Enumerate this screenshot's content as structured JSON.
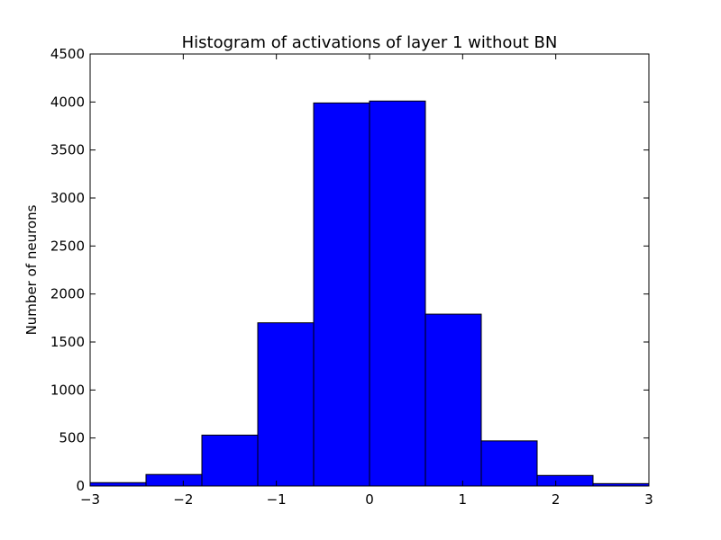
{
  "chart_data": {
    "type": "bar",
    "title": "Histogram of activations of layer 1  without BN",
    "xlabel": "",
    "ylabel": "Number of neurons",
    "xlim": [
      -3,
      3
    ],
    "ylim": [
      0,
      4500
    ],
    "bar_color": "#0000ff",
    "grid": false,
    "bin_edges": [
      -3.0,
      -2.4,
      -1.8,
      -1.2,
      -0.6,
      0.0,
      0.6,
      1.2,
      1.8,
      2.4,
      3.0
    ],
    "values": [
      35,
      120,
      530,
      1700,
      3990,
      4010,
      1790,
      470,
      110,
      25
    ],
    "x_ticks": [
      -3,
      -2,
      -1,
      0,
      1,
      2,
      3
    ],
    "x_tick_labels": [
      "−3",
      "−2",
      "−1",
      "0",
      "1",
      "2",
      "3"
    ],
    "y_ticks": [
      0,
      500,
      1000,
      1500,
      2000,
      2500,
      3000,
      3500,
      4000,
      4500
    ],
    "y_tick_labels": [
      "0",
      "500",
      "1000",
      "1500",
      "2000",
      "2500",
      "3000",
      "3500",
      "4000",
      "4500"
    ]
  }
}
